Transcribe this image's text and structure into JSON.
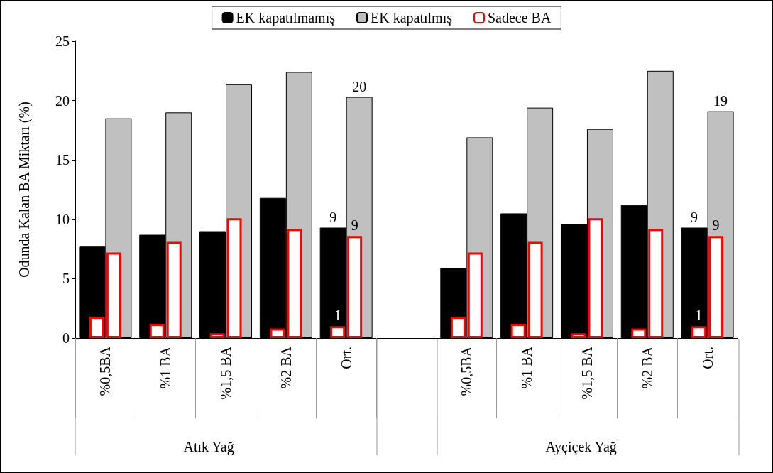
{
  "chart_data": {
    "type": "bar",
    "ylabel": "Odunda Kalan BA Miktarı (%)",
    "categories": [
      "%0,5BA",
      "%1 BA",
      "%1,5 BA",
      "%2 BA",
      "Ort.",
      null,
      "%0,5BA",
      "%1 BA",
      "%1,5 BA",
      "%2 BA",
      "Ort."
    ],
    "ylim": [
      0,
      25
    ],
    "yticks": [
      0,
      5,
      10,
      15,
      20,
      25
    ],
    "grid": false,
    "legend": "top",
    "annotations": [
      "Atık Yağ",
      "Ayçiçek Yağ"
    ],
    "series": [
      {
        "name": "EK kapatılmamış",
        "color": "#000000",
        "values": [
          7.7,
          8.7,
          9.0,
          11.8,
          9.3,
          null,
          5.9,
          10.5,
          9.6,
          11.2,
          9.3
        ],
        "value_labels": [
          null,
          null,
          null,
          null,
          "9",
          null,
          null,
          null,
          null,
          null,
          "9"
        ]
      },
      {
        "name": "EK kapatılmış",
        "color": "#c0c0c0",
        "values": [
          18.5,
          19.0,
          21.4,
          22.4,
          20.3,
          null,
          16.9,
          19.4,
          17.6,
          22.5,
          19.1
        ],
        "value_labels": [
          null,
          null,
          null,
          null,
          "20",
          null,
          null,
          null,
          null,
          null,
          "19"
        ]
      },
      {
        "name": "Sadece BA",
        "color": "#ff0000",
        "values": [
          1.8,
          1.2,
          0.4,
          0.8,
          1.0,
          null,
          1.8,
          1.2,
          0.4,
          0.8,
          1.0
        ],
        "value_labels": [
          null,
          null,
          null,
          null,
          "1",
          null,
          null,
          null,
          null,
          null,
          "1"
        ]
      },
      {
        "color": "#ff0000",
        "values": [
          7.2,
          8.1,
          10.1,
          9.2,
          8.6,
          null,
          7.2,
          8.1,
          10.1,
          9.2,
          8.6
        ],
        "value_labels": [
          null,
          null,
          null,
          null,
          "9",
          null,
          null,
          null,
          null,
          null,
          "9"
        ]
      }
    ]
  }
}
